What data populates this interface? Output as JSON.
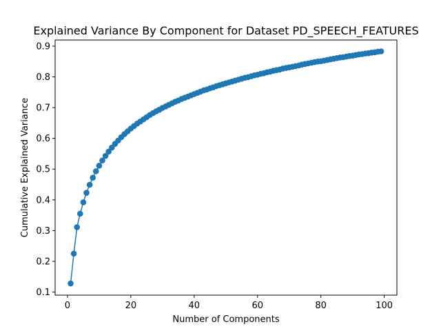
{
  "chart_data": {
    "type": "line",
    "title": "Explained Variance By Component for Dataset PD_SPEECH_FEATURES",
    "xlabel": "Number of Components",
    "ylabel": "Cumulative Explained Variance",
    "xlim": [
      -3.9,
      104
    ],
    "ylim": [
      0.09,
      0.92
    ],
    "xticks": [
      0,
      20,
      40,
      60,
      80,
      100
    ],
    "yticks": [
      0.1,
      0.2,
      0.3,
      0.4,
      0.5,
      0.6,
      0.7,
      0.8,
      0.9
    ],
    "grid": false,
    "markers": true,
    "color": "#1f77b4",
    "series": [
      {
        "x": [
          1,
          2,
          3,
          4,
          5,
          6,
          7,
          8,
          9,
          10,
          11,
          12,
          13,
          14,
          15,
          16,
          17,
          18,
          19,
          20,
          21,
          22,
          23,
          24,
          25,
          26,
          27,
          28,
          29,
          30,
          31,
          32,
          33,
          34,
          35,
          36,
          37,
          38,
          39,
          40,
          41,
          42,
          43,
          44,
          45,
          46,
          47,
          48,
          49,
          50,
          51,
          52,
          53,
          54,
          55,
          56,
          57,
          58,
          59,
          60,
          61,
          62,
          63,
          64,
          65,
          66,
          67,
          68,
          69,
          70,
          71,
          72,
          73,
          74,
          75,
          76,
          77,
          78,
          79,
          80,
          81,
          82,
          83,
          84,
          85,
          86,
          87,
          88,
          89,
          90,
          91,
          92,
          93,
          94,
          95,
          96,
          97,
          98,
          99
        ],
        "values": [
          0.128,
          0.225,
          0.311,
          0.355,
          0.392,
          0.423,
          0.449,
          0.472,
          0.493,
          0.511,
          0.528,
          0.543,
          0.557,
          0.57,
          0.582,
          0.593,
          0.604,
          0.614,
          0.623,
          0.632,
          0.64,
          0.648,
          0.655,
          0.662,
          0.669,
          0.676,
          0.682,
          0.688,
          0.693,
          0.699,
          0.704,
          0.709,
          0.714,
          0.719,
          0.723,
          0.728,
          0.732,
          0.736,
          0.74,
          0.744,
          0.748,
          0.752,
          0.756,
          0.759,
          0.763,
          0.766,
          0.77,
          0.773,
          0.776,
          0.779,
          0.782,
          0.785,
          0.788,
          0.791,
          0.794,
          0.797,
          0.799,
          0.802,
          0.805,
          0.807,
          0.81,
          0.812,
          0.815,
          0.817,
          0.82,
          0.822,
          0.824,
          0.827,
          0.829,
          0.831,
          0.833,
          0.835,
          0.837,
          0.84,
          0.842,
          0.844,
          0.846,
          0.848,
          0.85,
          0.851,
          0.853,
          0.855,
          0.857,
          0.859,
          0.861,
          0.863,
          0.864,
          0.866,
          0.868,
          0.869,
          0.871,
          0.873,
          0.874,
          0.876,
          0.877,
          0.879,
          0.88,
          0.882,
          0.883
        ]
      }
    ]
  }
}
